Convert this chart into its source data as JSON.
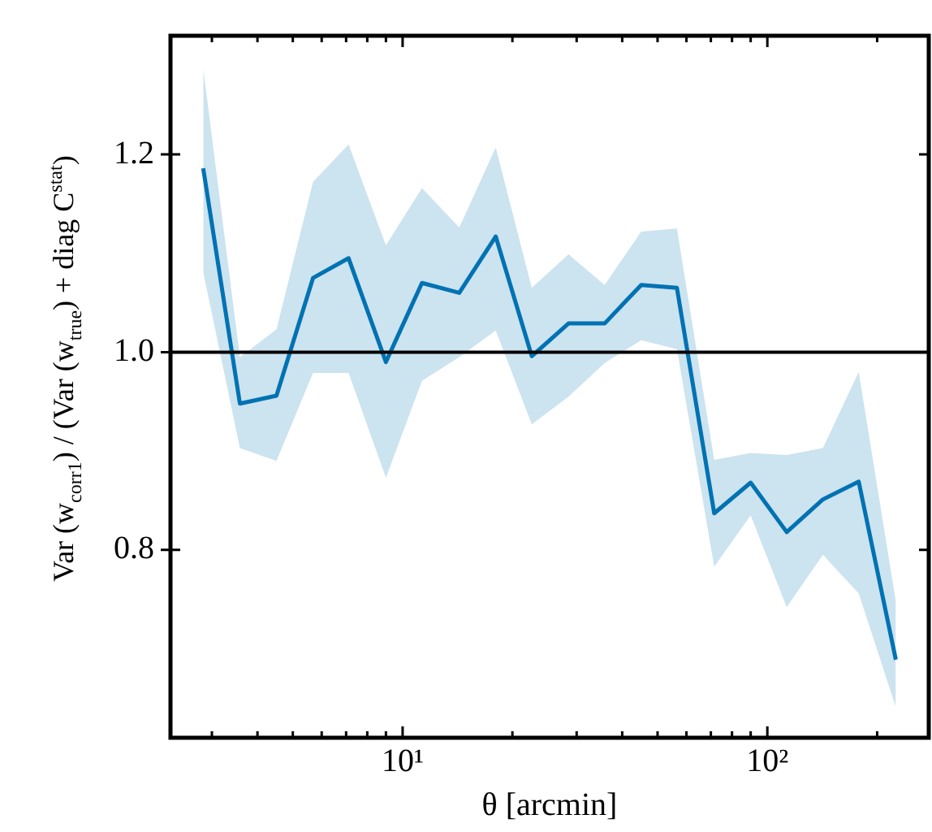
{
  "chart_data": {
    "type": "line",
    "xlabel": "θ [arcmin]",
    "ylabel": "Var (w$_{corr1}$) / (Var (w$_{true}$) + diag C$^{stat}$)",
    "log": "x",
    "grid": false,
    "legend": false,
    "marker": "none",
    "line_style": "solid",
    "xlim": [
      2.31,
      277
    ],
    "ylim": [
      0.61,
      1.32
    ],
    "xticks": [
      {
        "value": 3,
        "label": null
      },
      {
        "value": 4,
        "label": null
      },
      {
        "value": 5,
        "label": null
      },
      {
        "value": 6,
        "label": null
      },
      {
        "value": 7,
        "label": null
      },
      {
        "value": 8,
        "label": null
      },
      {
        "value": 9,
        "label": null
      },
      {
        "value": 10,
        "label": "10¹"
      },
      {
        "value": 20,
        "label": null
      },
      {
        "value": 30,
        "label": null
      },
      {
        "value": 40,
        "label": null
      },
      {
        "value": 50,
        "label": null
      },
      {
        "value": 60,
        "label": null
      },
      {
        "value": 70,
        "label": null
      },
      {
        "value": 80,
        "label": null
      },
      {
        "value": 90,
        "label": null
      },
      {
        "value": 100,
        "label": "10²"
      },
      {
        "value": 200,
        "label": null
      }
    ],
    "yticks": [
      0.8,
      {
        "value": 1.0,
        "label": "1.0"
      },
      1.2
    ],
    "x": [
      2.84,
      3.58,
      4.51,
      5.68,
      7.11,
      9.0,
      11.3,
      14.3,
      18.0,
      22.6,
      28.5,
      35.8,
      45.1,
      56.5,
      71.5,
      90,
      113,
      142,
      178,
      225
    ],
    "series": [
      {
        "color": "#0072b2",
        "values": [
          1.186,
          0.948,
          0.956,
          1.075,
          1.095,
          0.99,
          1.07,
          1.06,
          1.117,
          0.996,
          1.029,
          1.029,
          1.068,
          1.065,
          0.837,
          0.868,
          0.818,
          0.851,
          0.869,
          0.689
        ],
        "lower": [
          1.081,
          0.903,
          0.89,
          0.979,
          0.979,
          0.873,
          0.971,
          0.995,
          1.022,
          0.927,
          0.955,
          0.989,
          1.012,
          1.003,
          0.783,
          0.835,
          0.742,
          0.795,
          0.756,
          0.641
        ],
        "upper": [
          1.287,
          0.995,
          1.023,
          1.172,
          1.21,
          1.108,
          1.166,
          1.126,
          1.207,
          1.065,
          1.099,
          1.068,
          1.122,
          1.125,
          0.891,
          0.898,
          0.896,
          0.903,
          0.98,
          0.748
        ]
      }
    ],
    "ref_lines": [
      {
        "axis": "y",
        "value": 1.0,
        "color": "#000000"
      }
    ]
  }
}
